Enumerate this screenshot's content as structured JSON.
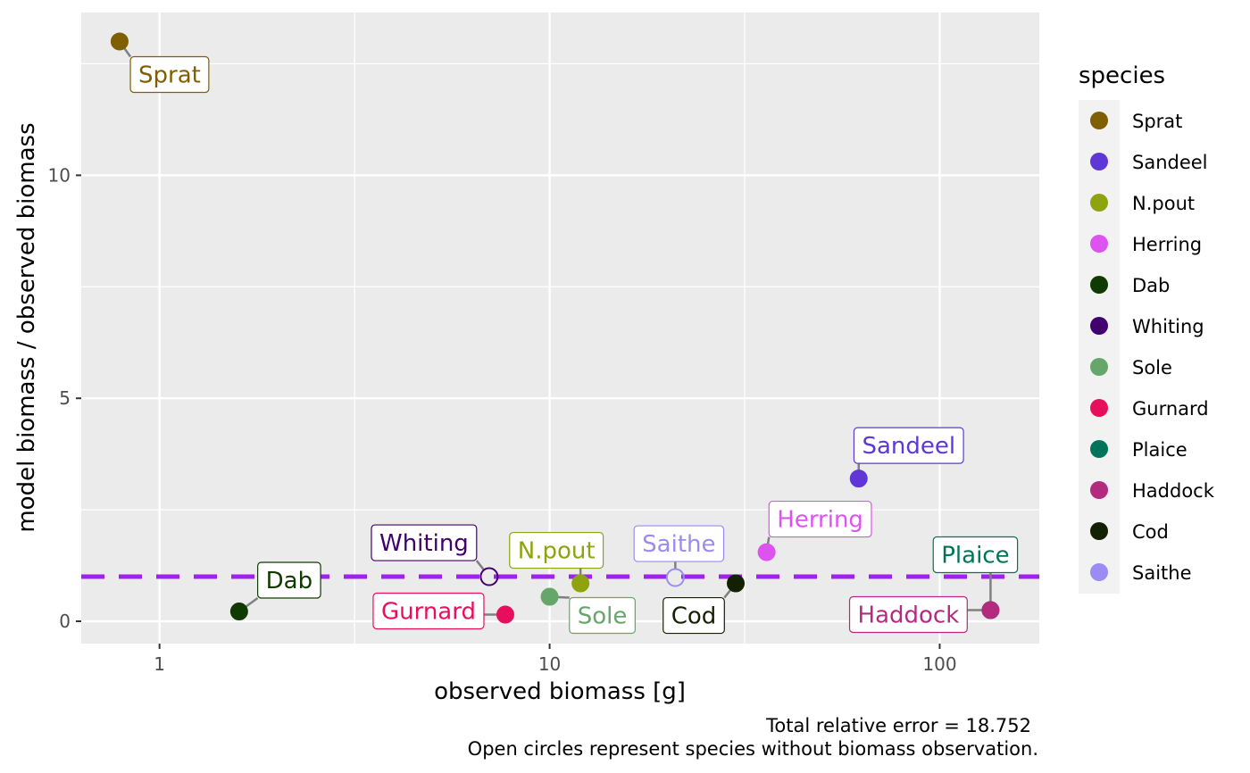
{
  "chart_data": {
    "type": "scatter",
    "xlabel": "observed biomass [g]",
    "ylabel": "model biomass / observed biomass",
    "x_scale": "log10",
    "xlim": [
      0.63,
      180
    ],
    "ylim": [
      -0.5,
      13.65
    ],
    "x_ticks": [
      1,
      10,
      100
    ],
    "x_tick_labels": [
      "1",
      "10",
      "100"
    ],
    "y_ticks": [
      0,
      5,
      10
    ],
    "y_tick_labels": [
      "0",
      "5",
      "10"
    ],
    "grid": true,
    "reference_line": {
      "y": 1,
      "style": "dashed",
      "color": "#a020f0"
    },
    "legend": {
      "title": "species",
      "position": "right"
    },
    "caption": [
      "Total relative error = 18.752",
      "Open circles represent species without biomass observation."
    ],
    "points": [
      {
        "species": "Sprat",
        "x": 0.79,
        "y": 13.0,
        "color": "#7f5f00",
        "open": false
      },
      {
        "species": "Sandeel",
        "x": 62,
        "y": 3.2,
        "color": "#5e37d6",
        "open": false
      },
      {
        "species": "N.pout",
        "x": 12,
        "y": 0.85,
        "color": "#8fa30f",
        "open": false
      },
      {
        "species": "Herring",
        "x": 36,
        "y": 1.55,
        "color": "#dd53f0",
        "open": false
      },
      {
        "species": "Dab",
        "x": 1.6,
        "y": 0.22,
        "color": "#0f3a00",
        "open": false
      },
      {
        "species": "Whiting",
        "x": 7.0,
        "y": 1.0,
        "color": "#42006e",
        "open": true
      },
      {
        "species": "Sole",
        "x": 10,
        "y": 0.55,
        "color": "#66a66a",
        "open": false
      },
      {
        "species": "Gurnard",
        "x": 7.7,
        "y": 0.15,
        "color": "#e70e5d",
        "open": false
      },
      {
        "species": "Plaice",
        "x": 135,
        "y": 0.25,
        "color": "#00745a",
        "open": false
      },
      {
        "species": "Haddock",
        "x": 135,
        "y": 0.25,
        "color": "#b22b7e",
        "open": false
      },
      {
        "species": "Cod",
        "x": 30,
        "y": 0.85,
        "color": "#142002",
        "open": false
      },
      {
        "species": "Saithe",
        "x": 21,
        "y": 0.98,
        "color": "#9a8cf2",
        "open": true
      }
    ]
  }
}
